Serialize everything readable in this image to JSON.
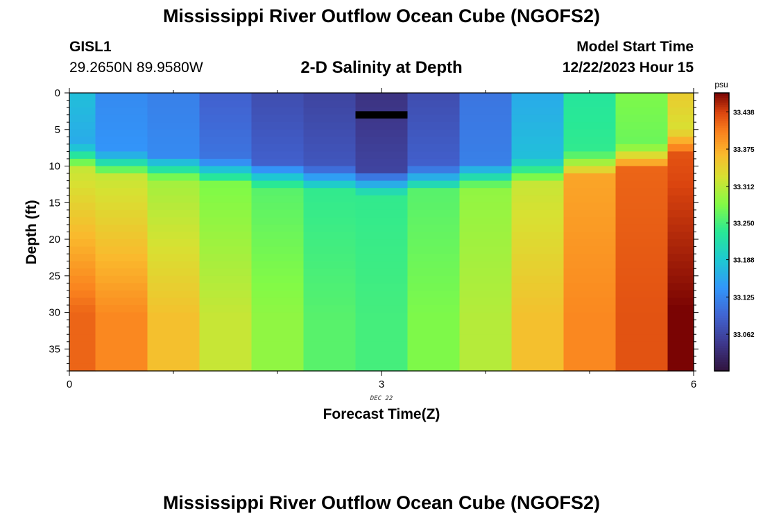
{
  "header": {
    "title": "Mississippi River Outflow Ocean Cube (NGOFS2)",
    "station": "GISL1",
    "coords": "29.2650N  89.9580W",
    "subtitle": "2-D Salinity at Depth",
    "model_start_label": "Model Start Time",
    "model_start_value": "12/22/2023 Hour 15"
  },
  "footer": {
    "title": "Mississippi River Outflow Ocean Cube (NGOFS2)"
  },
  "chart_data": {
    "type": "heatmap",
    "xlabel": "Forecast Time(Z)",
    "ylabel": "Depth (ft)",
    "date_label": "DEC 22",
    "xlim": [
      0,
      6
    ],
    "ylim": [
      38,
      0
    ],
    "x_ticks": [
      0,
      3,
      6
    ],
    "y_ticks": [
      0,
      5,
      10,
      15,
      20,
      25,
      30,
      35
    ],
    "x_columns": [
      0,
      0.5,
      1,
      1.5,
      2,
      2.5,
      3,
      3.5,
      4,
      4.5,
      5,
      5.5,
      6
    ],
    "colorbar": {
      "unit": "psu",
      "min": 33.0,
      "max": 33.47,
      "ticks": [
        "33.062",
        "33.125",
        "33.188",
        "33.250",
        "33.312",
        "33.375",
        "33.438"
      ]
    },
    "profiles": [
      {
        "time": 0,
        "surface": 33.18,
        "surface_bottom": 33.16,
        "mid": 33.3,
        "bottom": 33.42,
        "cline": 8.5
      },
      {
        "time": 0.5,
        "surface": 33.13,
        "surface_bottom": 33.14,
        "mid": 33.3,
        "bottom": 33.4,
        "cline": 9.5
      },
      {
        "time": 1,
        "surface": 33.12,
        "surface_bottom": 33.13,
        "mid": 33.28,
        "bottom": 33.36,
        "cline": 10.0
      },
      {
        "time": 1.5,
        "surface": 33.09,
        "surface_bottom": 33.11,
        "mid": 33.26,
        "bottom": 33.32,
        "cline": 10.5
      },
      {
        "time": 2,
        "surface": 33.07,
        "surface_bottom": 33.09,
        "mid": 33.24,
        "bottom": 33.29,
        "cline": 11.0
      },
      {
        "time": 2.5,
        "surface": 33.06,
        "surface_bottom": 33.08,
        "mid": 33.22,
        "bottom": 33.26,
        "cline": 11.5
      },
      {
        "time": 3,
        "surface": 33.04,
        "surface_bottom": 33.06,
        "mid": 33.22,
        "bottom": 33.25,
        "cline": 12.0
      },
      {
        "time": 3.5,
        "surface": 33.07,
        "surface_bottom": 33.09,
        "mid": 33.24,
        "bottom": 33.28,
        "cline": 11.5
      },
      {
        "time": 4,
        "surface": 33.11,
        "surface_bottom": 33.12,
        "mid": 33.27,
        "bottom": 33.31,
        "cline": 11.0
      },
      {
        "time": 4.5,
        "surface": 33.16,
        "surface_bottom": 33.18,
        "mid": 33.3,
        "bottom": 33.36,
        "cline": 10.5
      },
      {
        "time": 5,
        "surface": 33.23,
        "surface_bottom": 33.24,
        "mid": 33.36,
        "bottom": 33.4,
        "cline": 9.5
      },
      {
        "time": 5.5,
        "surface": 33.28,
        "surface_bottom": 33.27,
        "mid": 33.4,
        "bottom": 33.43,
        "cline": 8.5
      },
      {
        "time": 6,
        "surface": 33.35,
        "surface_bottom": 33.33,
        "mid": 33.41,
        "bottom": 33.47,
        "cline": 6.5
      }
    ],
    "missing_cell": {
      "time": 3,
      "depth_top": 2.5,
      "depth_bottom": 3.5
    }
  }
}
